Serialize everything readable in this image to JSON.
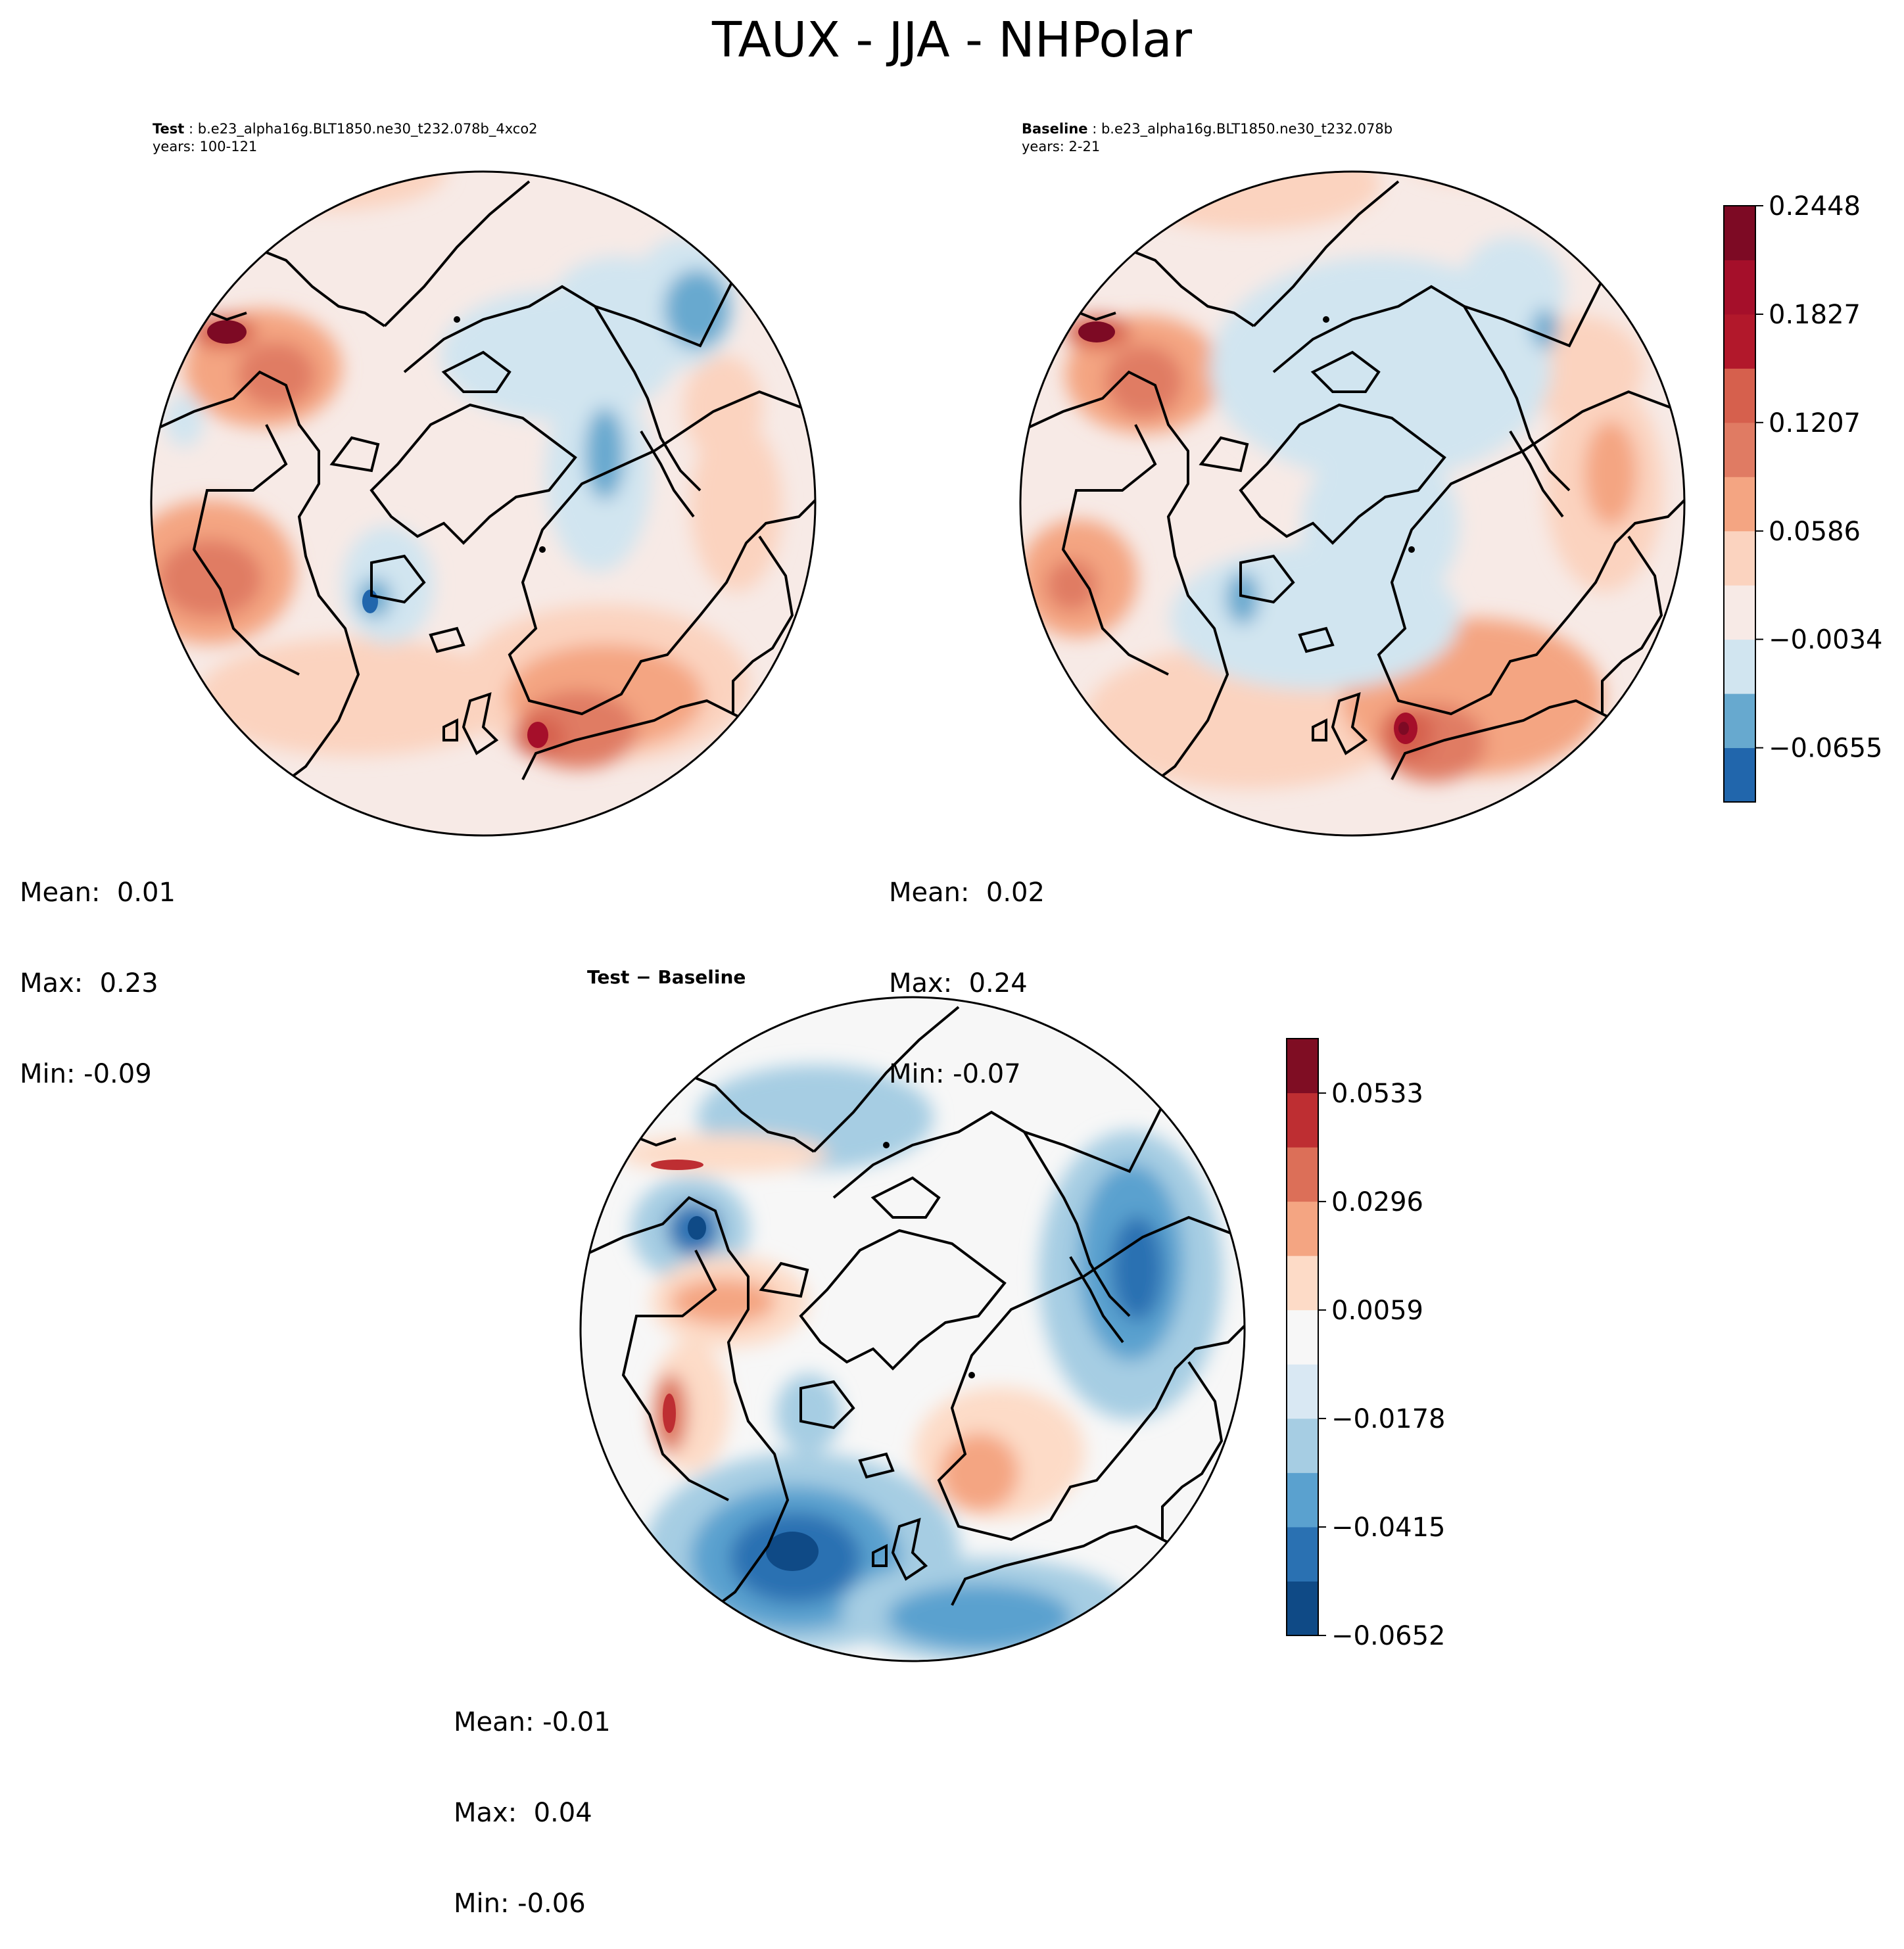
{
  "chart_data": {
    "type": "contour-map",
    "title": "TAUX - JJA - NHPolar",
    "projection": "North Polar Stereographic",
    "panels": [
      {
        "id": "test",
        "label_bold": "Test",
        "case": "b.e23_alpha16g.BLT1850.ne30_t232.078b_4xco2",
        "years": "years: 100-121",
        "stats": {
          "mean": "Mean:  0.01",
          "max": "Max:  0.23",
          "min": "Min: -0.09"
        }
      },
      {
        "id": "baseline",
        "label_bold": "Baseline",
        "case": "b.e23_alpha16g.BLT1850.ne30_t232.078b",
        "years": "years: 2-21",
        "stats": {
          "mean": "Mean:  0.02",
          "max": "Max:  0.24",
          "min": "Min: -0.07"
        }
      },
      {
        "id": "difference",
        "label_bold": "Test − Baseline",
        "stats": {
          "mean": "Mean: -0.01",
          "max": "Max:  0.04",
          "min": "Min: -0.06"
        }
      }
    ],
    "colorbars": [
      {
        "id": "main",
        "ticks": [
          "−0.0655",
          "−0.0034",
          "0.0586",
          "0.1207",
          "0.1827",
          "0.2448"
        ],
        "tick_values": [
          -0.0655,
          -0.0034,
          0.0586,
          0.1207,
          0.1827,
          0.2448
        ],
        "range": [
          -0.0965,
          0.2448
        ],
        "levels": 11,
        "colors": [
          "#2166ac",
          "#67a9cf",
          "#d1e5f0",
          "#f7eae6",
          "#fbd3bf",
          "#f4a582",
          "#e07b63",
          "#d6604d",
          "#b2182b",
          "#a50f2a",
          "#7d0a24"
        ]
      },
      {
        "id": "diff",
        "ticks": [
          "−0.0652",
          "−0.0415",
          "−0.0178",
          "0.0059",
          "0.0296",
          "0.0533"
        ],
        "tick_values": [
          -0.0652,
          -0.0415,
          -0.0178,
          0.0059,
          0.0296,
          0.0533
        ],
        "range": [
          -0.0652,
          0.0652
        ],
        "levels": 11,
        "colors": [
          "#0f4a86",
          "#2a71b2",
          "#5aa1cf",
          "#a6cde3",
          "#d9e8f3",
          "#f7f7f7",
          "#fddbc7",
          "#f4a582",
          "#dc6f58",
          "#be2e32",
          "#7f0d23"
        ]
      }
    ]
  }
}
